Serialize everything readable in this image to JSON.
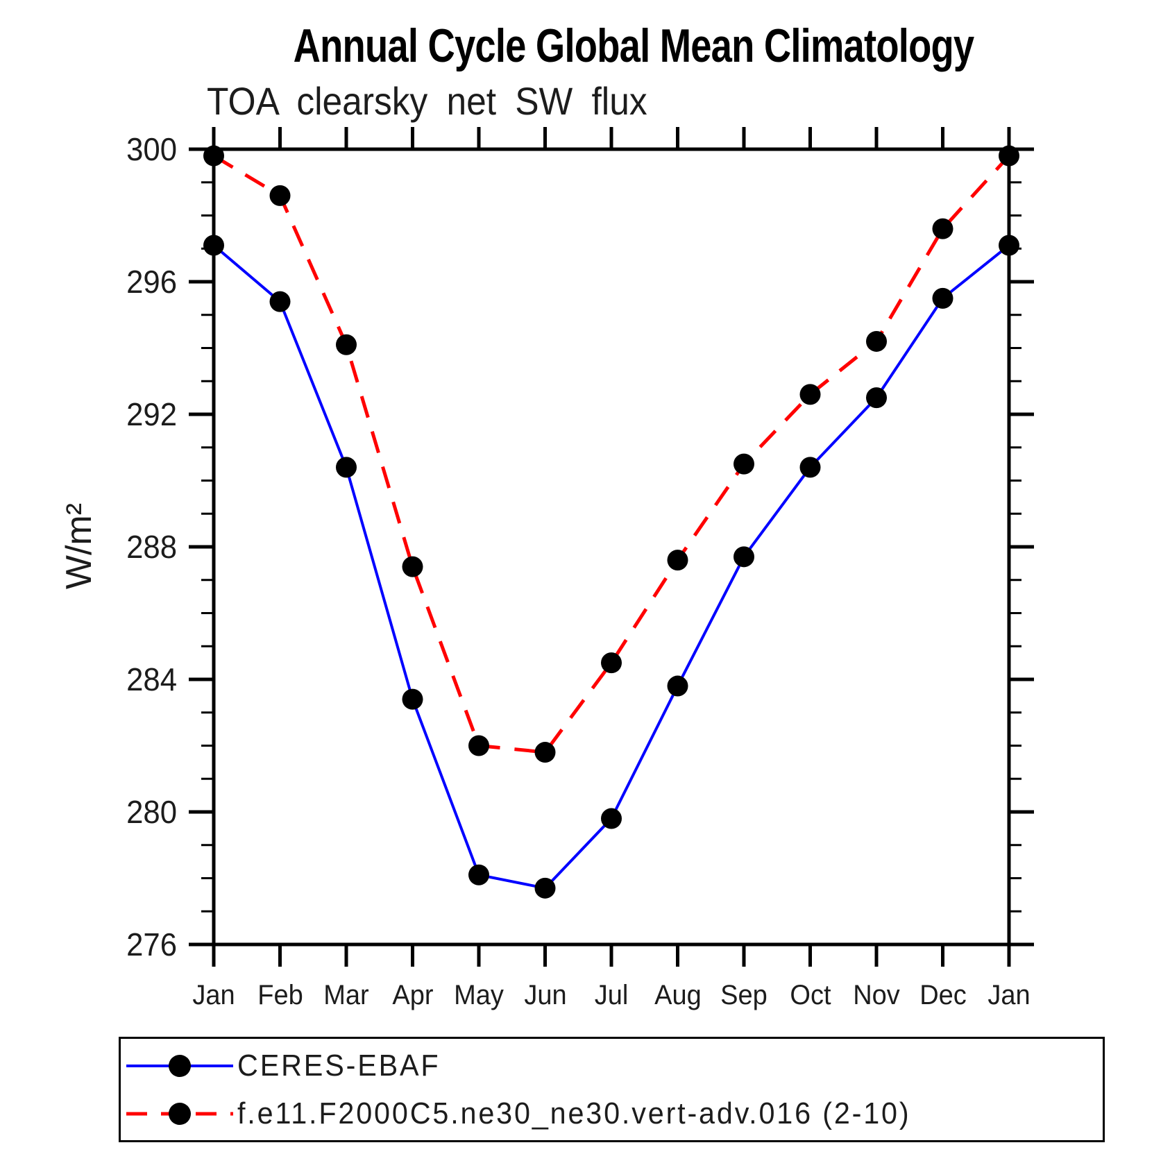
{
  "page": {
    "background": "#ffffff"
  },
  "chart_data": {
    "type": "line",
    "title": "Annual Cycle Global Mean Climatology",
    "subtitle": "TOA clearsky net SW flux",
    "ylabel": "W/m²",
    "xlabel": "",
    "categories": [
      "Jan",
      "Feb",
      "Mar",
      "Apr",
      "May",
      "Jun",
      "Jul",
      "Aug",
      "Sep",
      "Oct",
      "Nov",
      "Dec",
      "Jan"
    ],
    "ylim": [
      276,
      300
    ],
    "ytick_major_step": 4,
    "ytick_minor_step": 1,
    "grid": false,
    "legend_position": "bottom",
    "axis_color": "#000000",
    "marker": {
      "shape": "circle",
      "color": "#000000",
      "radius": 15
    },
    "series": [
      {
        "name": "CERES-EBAF",
        "color": "#0000ff",
        "style": "solid",
        "line_width": 4,
        "values": [
          297.1,
          295.4,
          290.4,
          283.4,
          278.1,
          277.7,
          279.8,
          283.8,
          287.7,
          290.4,
          292.5,
          295.5,
          297.1
        ]
      },
      {
        "name": "f.e11.F2000C5.ne30_ne30.vert-adv.016 (2-10)",
        "color": "#ff0000",
        "style": "dashed",
        "line_width": 5,
        "values": [
          299.8,
          298.6,
          294.1,
          287.4,
          282.0,
          281.8,
          284.5,
          287.6,
          290.5,
          292.6,
          294.2,
          297.6,
          299.8
        ]
      }
    ]
  }
}
